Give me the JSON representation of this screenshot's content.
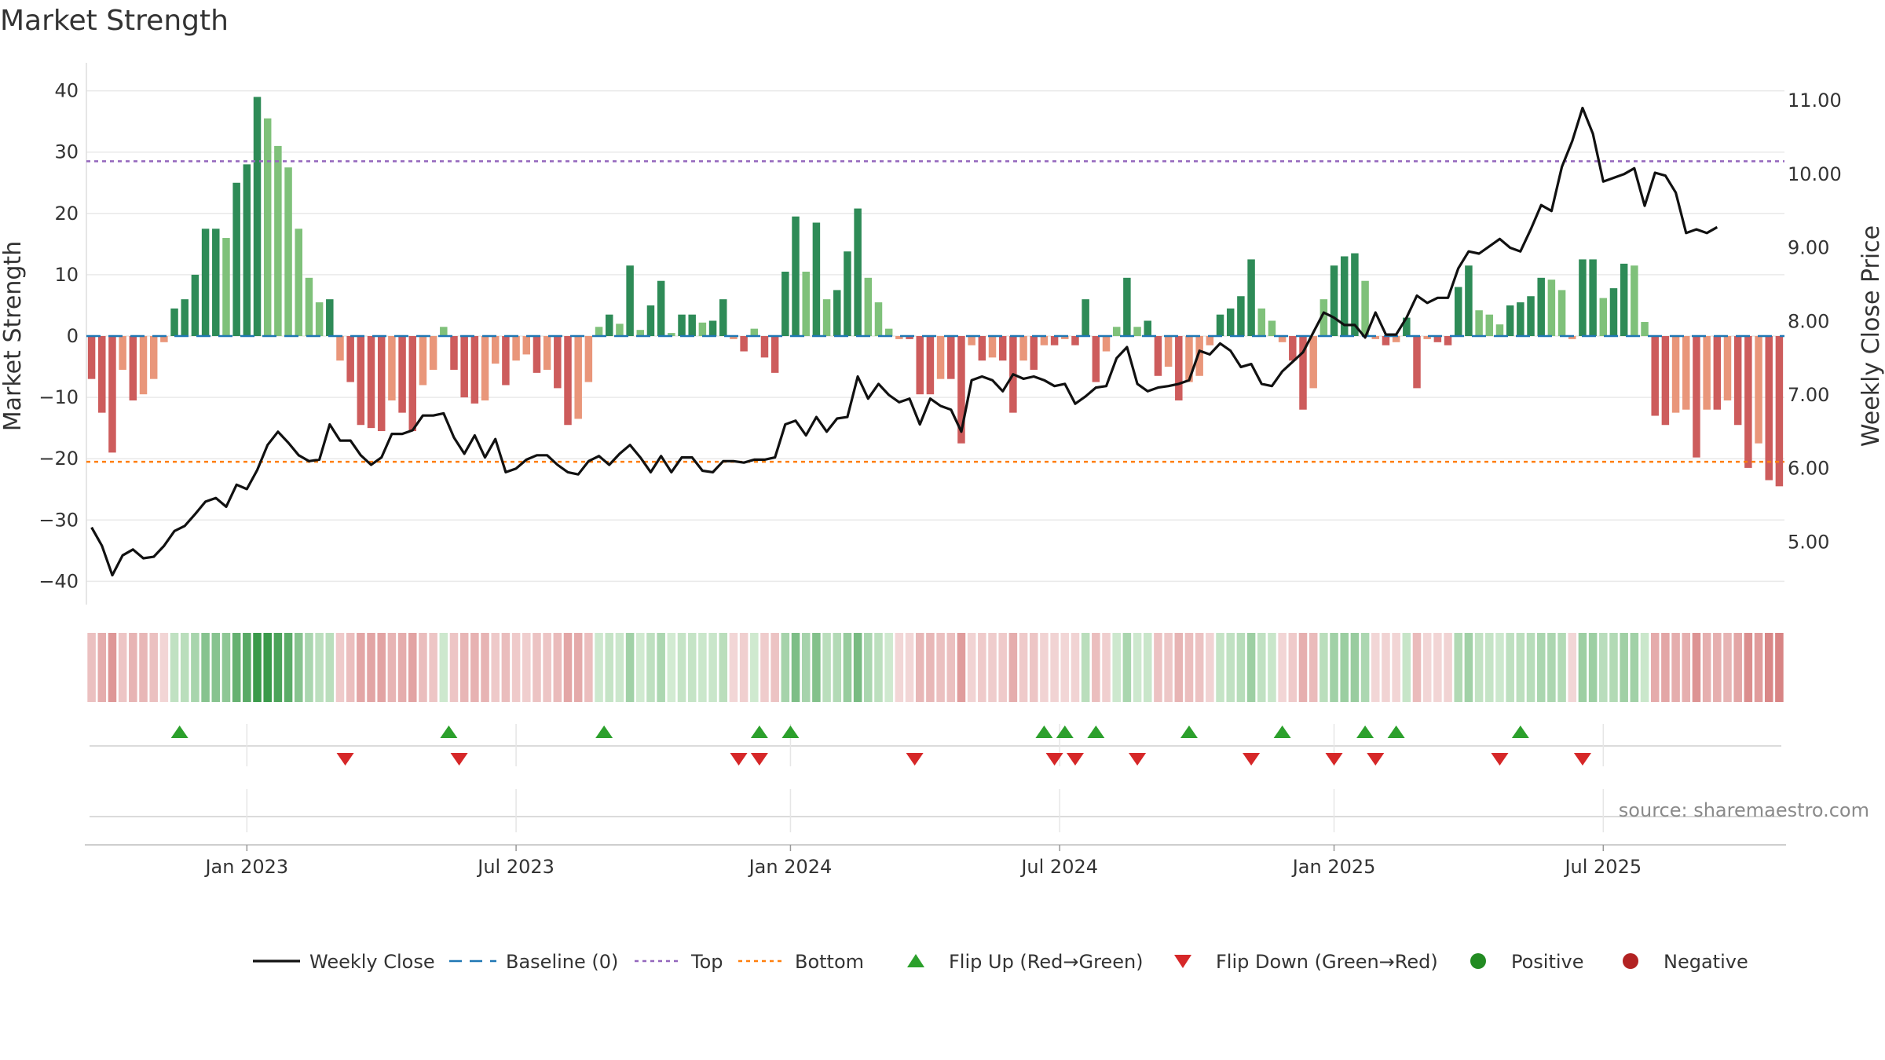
{
  "chart_data": {
    "type": "bar",
    "title": "Market Strength",
    "y_left_label": "Market Strength",
    "y_right_label": "Weekly Close Price",
    "y_left_ticks": [
      "40",
      "30",
      "20",
      "10",
      "0",
      "−10",
      "−20",
      "−30",
      "−40"
    ],
    "y_right_ticks": [
      "11.00",
      "10.00",
      "9.00",
      "8.00",
      "7.00",
      "6.00",
      "5.00"
    ],
    "ylim_left": [
      -42,
      42
    ],
    "ylim_right": [
      4.3,
      11.3
    ],
    "top_level": 28.5,
    "bottom_level": -20.5,
    "x_ticks": [
      "Jan 2023",
      "Jul 2023",
      "Jan 2024",
      "Jul 2024",
      "Jan 2025",
      "Jul 2025"
    ],
    "x_tick_weeks": [
      15,
      41,
      67.5,
      93.5,
      120,
      146
    ],
    "strength": [
      -7,
      -12.5,
      -19,
      -5.5,
      -10.5,
      -9.5,
      -7,
      -1,
      4.5,
      6,
      10,
      17.5,
      17.5,
      16,
      25,
      28,
      39,
      35.5,
      31,
      27.5,
      17.5,
      9.5,
      5.5,
      6,
      -4,
      -7.5,
      -14.5,
      -15,
      -15.5,
      -10.5,
      -12.5,
      -15.5,
      -8,
      -5.5,
      1.5,
      -5.5,
      -10,
      -11,
      -10.5,
      -4.5,
      -8,
      -4,
      -3,
      -6,
      -5.5,
      -8.5,
      -14.5,
      -13.5,
      -7.5,
      1.5,
      3.5,
      2,
      11.5,
      1,
      5,
      9,
      0.5,
      3.5,
      3.5,
      2.2,
      2.5,
      6,
      -0.5,
      -2.5,
      1.2,
      -3.5,
      -6,
      10.5,
      19.5,
      10.5,
      18.5,
      6,
      7.5,
      13.8,
      20.8,
      9.5,
      5.5,
      1.2,
      -0.5,
      -0.5,
      -9.5,
      -9.5,
      -7,
      -7,
      -17.5,
      -1.5,
      -4,
      -3.5,
      -4,
      -12.5,
      -4,
      -5.5,
      -1.5,
      -1.5,
      -0.5,
      -1.5,
      6,
      -7.5,
      -2.5,
      1.5,
      9.5,
      1.5,
      2.5,
      -6.5,
      -5,
      -10.5,
      -7.5,
      -6.5,
      -1.5,
      3.5,
      4.5,
      6.5,
      12.5,
      4.5,
      2.5,
      -1,
      -4,
      -12,
      -8.5,
      6,
      11.5,
      13,
      13.5,
      9,
      -0.5,
      -1.5,
      -1,
      3,
      -8.5,
      -0.5,
      -1,
      -1.5,
      8,
      11.5,
      4.2,
      3.5,
      1.9,
      5,
      5.5,
      6.5,
      9.5,
      9.2,
      7.5,
      -0.5,
      12.5,
      12.5,
      6.2,
      7.8,
      11.8,
      11.5,
      2.3,
      -13,
      -14.5,
      -12.5,
      -12,
      -19.8,
      -12,
      -12,
      -10.5,
      -14.5,
      -21.5,
      -17.5,
      -23.5,
      -24.5
    ],
    "weekly_close": [
      5.2,
      4.95,
      4.55,
      4.82,
      4.9,
      4.78,
      4.8,
      4.95,
      5.15,
      5.22,
      5.38,
      5.55,
      5.6,
      5.48,
      5.78,
      5.72,
      5.98,
      6.32,
      6.5,
      6.35,
      6.18,
      6.1,
      6.12,
      6.6,
      6.38,
      6.38,
      6.18,
      6.05,
      6.15,
      6.47,
      6.47,
      6.52,
      6.72,
      6.72,
      6.75,
      6.42,
      6.2,
      6.45,
      6.15,
      6.4,
      5.95,
      6.0,
      6.12,
      6.18,
      6.18,
      6.05,
      5.95,
      5.92,
      6.1,
      6.17,
      6.05,
      6.2,
      6.32,
      6.15,
      5.95,
      6.17,
      5.95,
      6.15,
      6.15,
      5.97,
      5.95,
      6.1,
      6.1,
      6.08,
      6.12,
      6.12,
      6.15,
      6.6,
      6.65,
      6.45,
      6.7,
      6.5,
      6.68,
      6.7,
      7.25,
      6.95,
      7.15,
      7.0,
      6.9,
      6.95,
      6.6,
      6.95,
      6.85,
      6.8,
      6.5,
      7.2,
      7.25,
      7.2,
      7.05,
      7.28,
      7.22,
      7.25,
      7.2,
      7.12,
      7.15,
      6.88,
      6.98,
      7.1,
      7.12,
      7.5,
      7.65,
      7.15,
      7.05,
      7.1,
      7.12,
      7.15,
      7.2,
      7.6,
      7.55,
      7.7,
      7.6,
      7.38,
      7.42,
      7.15,
      7.12,
      7.32,
      7.45,
      7.58,
      7.85,
      8.12,
      8.05,
      7.95,
      7.95,
      7.78,
      8.12,
      7.82,
      7.82,
      8.05,
      8.35,
      8.25,
      8.32,
      8.32,
      8.72,
      8.95,
      8.92,
      9.02,
      9.12,
      9.0,
      8.95,
      9.25,
      9.58,
      9.5,
      10.1,
      10.45,
      10.9,
      10.55,
      9.9,
      9.95,
      10.0,
      10.08,
      9.57,
      10.02,
      9.98,
      9.75,
      9.2,
      9.25,
      9.2,
      9.28
    ],
    "flip_up_weeks": [
      8.5,
      34.5,
      49.5,
      64.5,
      67.5,
      92,
      94,
      97,
      106,
      115,
      123,
      126,
      138
    ],
    "flip_down_weeks": [
      24.5,
      35.5,
      62.5,
      64.5,
      79.5,
      93,
      95,
      101,
      112,
      120,
      124,
      136,
      144
    ],
    "colors": {
      "green_strong": "#2e8b57",
      "green_light": "#7fc17a",
      "red_strong": "#cd5c5c",
      "red_light": "#e9967a",
      "close_line": "#111111",
      "baseline": "#1f77b4",
      "top": "#9467bd",
      "bottom": "#ff7f0e",
      "flip_up": "#2ca02c",
      "flip_down": "#d62728",
      "positive": "#228b22",
      "negative": "#b22222"
    },
    "legend": [
      {
        "label": "Weekly Close",
        "marker": "line-solid",
        "color": "#111111"
      },
      {
        "label": "Baseline (0)",
        "marker": "line-dashed",
        "color": "#1f77b4"
      },
      {
        "label": "Top",
        "marker": "line-dotted",
        "color": "#9467bd"
      },
      {
        "label": "Bottom",
        "marker": "line-dotted",
        "color": "#ff7f0e"
      },
      {
        "label": "Flip Up (Red→Green)",
        "marker": "triangle-up",
        "color": "#2ca02c"
      },
      {
        "label": "Flip Down (Green→Red)",
        "marker": "triangle-down",
        "color": "#d62728"
      },
      {
        "label": "Positive",
        "marker": "circle",
        "color": "#228b22"
      },
      {
        "label": "Negative",
        "marker": "circle",
        "color": "#b22222"
      }
    ],
    "legend_position": "bottom",
    "grid": true,
    "source": "source: sharemaestro.com"
  }
}
